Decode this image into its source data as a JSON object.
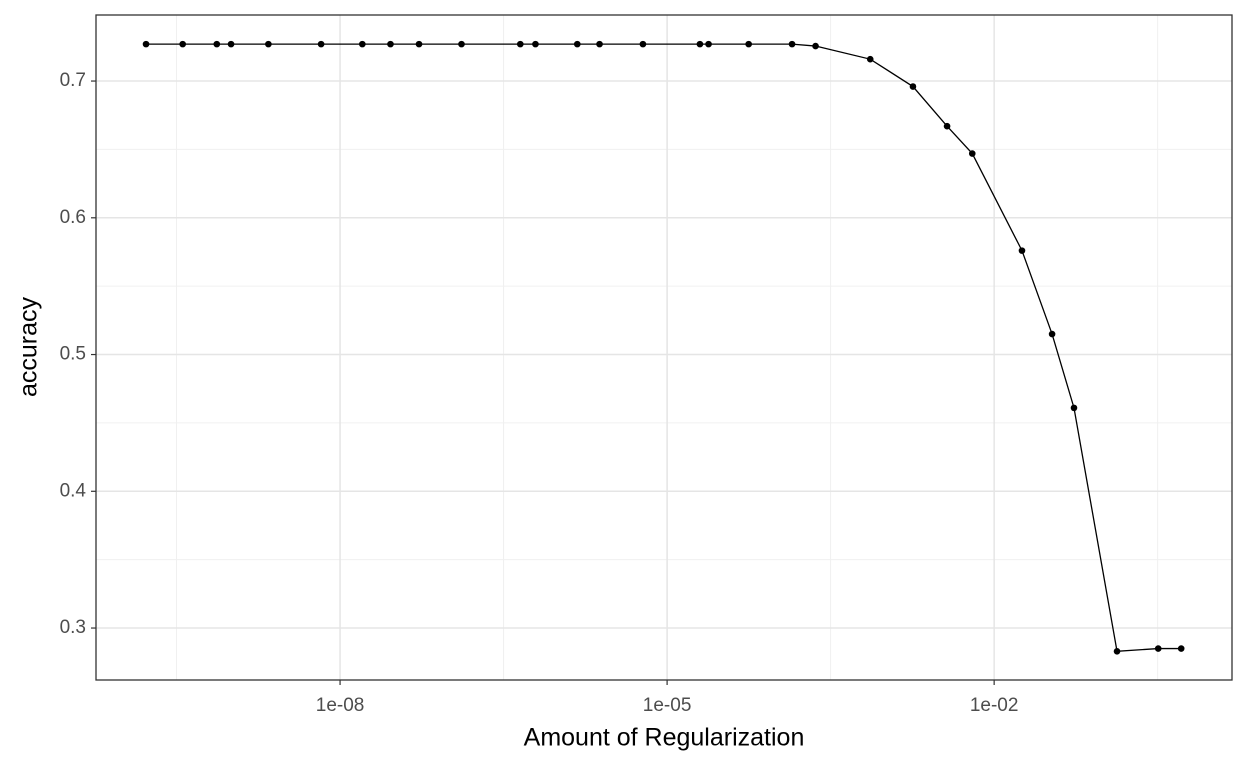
{
  "chart_data": {
    "type": "line",
    "xlabel": "Amount of Regularization",
    "ylabel": "accuracy",
    "xscale": "log",
    "grid": true,
    "color": "#000000",
    "x": [
      1.66e-10,
      3.6e-10,
      7.4e-10,
      1e-09,
      2.2e-09,
      6.7e-09,
      1.6e-08,
      2.9e-08,
      5.3e-08,
      1.3e-07,
      4.5e-07,
      6.2e-07,
      1.5e-06,
      2.4e-06,
      6e-06,
      2e-05,
      2.4e-05,
      5.6e-05,
      0.00014,
      0.00023,
      0.00073,
      0.0018,
      0.0037,
      0.0063,
      0.018,
      0.034,
      0.054,
      0.134,
      0.32,
      0.52
    ],
    "values": [
      0.727,
      0.727,
      0.727,
      0.727,
      0.727,
      0.727,
      0.727,
      0.727,
      0.727,
      0.727,
      0.727,
      0.727,
      0.727,
      0.727,
      0.727,
      0.727,
      0.727,
      0.727,
      0.727,
      0.7256,
      0.716,
      0.696,
      0.667,
      0.647,
      0.576,
      0.515,
      0.461,
      0.283,
      0.285,
      0.285
    ],
    "xlim": [
      5.77e-11,
      1.52
    ],
    "ylim": [
      0.262,
      0.7483
    ],
    "xticks": [
      {
        "value": 1e-08,
        "label": "1e-08"
      },
      {
        "value": 1e-05,
        "label": "1e-05"
      },
      {
        "value": 0.01,
        "label": "1e-02"
      }
    ],
    "x_minor_ticks": [
      3.16e-10,
      3.16e-07,
      0.000316,
      0.316
    ],
    "yticks": [
      0.3,
      0.4,
      0.5,
      0.6,
      0.7
    ],
    "y_minor_ticks": [
      0.35,
      0.45,
      0.55,
      0.65
    ]
  }
}
